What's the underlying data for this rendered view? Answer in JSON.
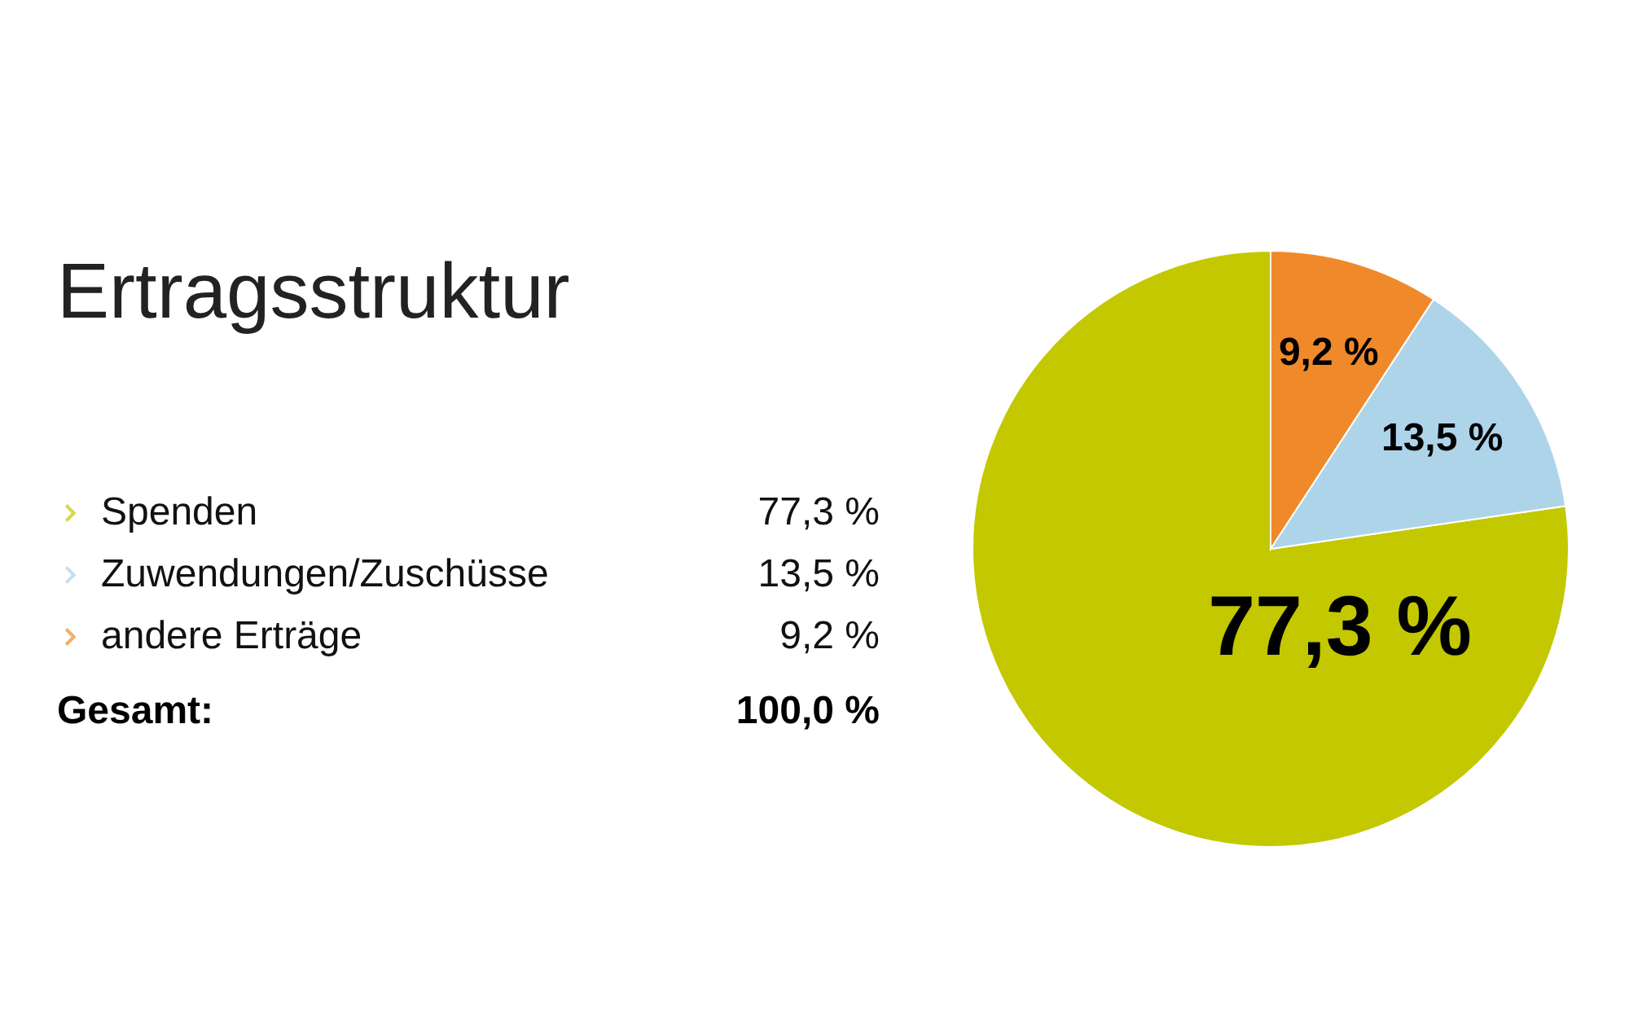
{
  "chart_data": {
    "type": "pie",
    "title": "Ertragsstruktur",
    "categories": [
      "Spenden",
      "Zuwendungen/Zuschüsse",
      "andere Erträge"
    ],
    "values": [
      77.3,
      13.5,
      9.2
    ],
    "colors": [
      "#c3c800",
      "#aed4ea",
      "#f0892a"
    ],
    "value_labels": [
      "77,3 %",
      "13,5 %",
      "9,2 %"
    ],
    "annotations": [
      "Gesamt:",
      "100,0 %"
    ],
    "legend": "left"
  }
}
